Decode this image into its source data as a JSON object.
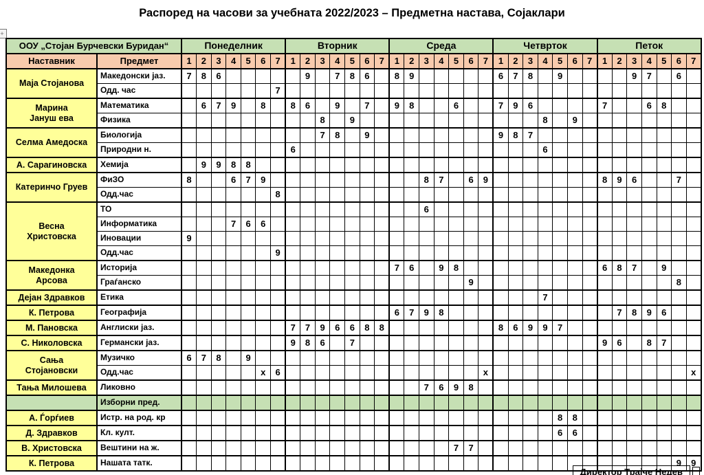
{
  "title": "Распоред на часови за учебната 2022/2023 – Предметна настава, Сојаклари",
  "colors": {
    "green": "#c6e0b4",
    "peach": "#f8cbad",
    "yellow": "#ffff99"
  },
  "table": {
    "school": "ООУ „Стојан Бурчевски Буридан“",
    "col_teacher": "Наставник",
    "col_subject": "Предмет",
    "days": [
      "Понеделник",
      "Вторник",
      "Среда",
      "Четврток",
      "Петок"
    ],
    "periods": [
      "1",
      "2",
      "3",
      "4",
      "5",
      "6",
      "7"
    ],
    "groups": [
      {
        "teacher": "Маја Стојанова",
        "rows": [
          {
            "subject": "Македонски јаз.",
            "mon": [
              "7",
              "8",
              "6",
              "",
              "",
              "",
              ""
            ],
            "tue": [
              "",
              "9",
              "",
              "7",
              "8",
              "6",
              ""
            ],
            "wed": [
              "8",
              "9",
              "",
              "",
              "",
              "",
              ""
            ],
            "thu": [
              "6",
              "7",
              "8",
              "",
              "9",
              "",
              ""
            ],
            "fri": [
              "",
              "",
              "9",
              "7",
              "",
              "6",
              ""
            ]
          },
          {
            "subject": "Одд. час",
            "mon": [
              "",
              "",
              "",
              "",
              "",
              "",
              "7"
            ]
          }
        ]
      },
      {
        "teacher": "Марина\nЈануш ева",
        "rows": [
          {
            "subject": "Математика",
            "mon": [
              "",
              "6",
              "7",
              "9",
              "",
              "8",
              ""
            ],
            "tue": [
              "8",
              "6",
              "",
              "9",
              "",
              "7",
              ""
            ],
            "wed": [
              "9",
              "8",
              "",
              "",
              "6",
              "",
              ""
            ],
            "thu": [
              "7",
              "9",
              "6",
              "",
              "",
              "",
              ""
            ],
            "fri": [
              "7",
              "",
              "",
              "6",
              "8",
              "",
              ""
            ]
          },
          {
            "subject": "Физика",
            "tue": [
              "",
              "",
              "8",
              "",
              "9",
              "",
              ""
            ],
            "thu": [
              "",
              "",
              "",
              "8",
              "",
              "9",
              ""
            ]
          }
        ]
      },
      {
        "teacher": "Селма Амедоска",
        "rows": [
          {
            "subject": "Биологија",
            "tue": [
              "",
              "",
              "7",
              "8",
              "",
              "9",
              ""
            ],
            "thu": [
              "9",
              "8",
              "7",
              "",
              "",
              "",
              ""
            ]
          },
          {
            "subject": "Природни н.",
            "tue": [
              "6",
              "",
              "",
              "",
              "",
              "",
              ""
            ],
            "thu": [
              "",
              "",
              "",
              "6",
              "",
              "",
              ""
            ]
          }
        ]
      },
      {
        "teacher": "А. Сарагиновска",
        "rows": [
          {
            "subject": "Хемија",
            "mon": [
              "",
              "9",
              "9",
              "8",
              "8",
              "",
              ""
            ]
          }
        ]
      },
      {
        "teacher": "Катеринчо Груев",
        "rows": [
          {
            "subject": "ФиЗО",
            "mon": [
              "8",
              "",
              "",
              "6",
              "7",
              "9",
              ""
            ],
            "wed": [
              "",
              "",
              "8",
              "7",
              "",
              "6",
              "9"
            ],
            "fri": [
              "8",
              "9",
              "6",
              "",
              "",
              "7",
              ""
            ]
          },
          {
            "subject": "Одд.час",
            "mon": [
              "",
              "",
              "",
              "",
              "",
              "",
              "8"
            ]
          }
        ]
      },
      {
        "teacher": "Весна\nХристовска",
        "rows": [
          {
            "subject": "ТО",
            "wed": [
              "",
              "",
              "6",
              "",
              "",
              "",
              ""
            ]
          },
          {
            "subject": "Информатика",
            "mon": [
              "",
              "",
              "",
              "7",
              "6",
              "6",
              ""
            ]
          },
          {
            "subject": "Иновации",
            "mon": [
              "9",
              "",
              "",
              "",
              "",
              "",
              ""
            ]
          },
          {
            "subject": "Одд.час",
            "mon": [
              "",
              "",
              "",
              "",
              "",
              "",
              "9"
            ]
          }
        ]
      },
      {
        "teacher": "Македонка\nАрсова",
        "rows": [
          {
            "subject": "Историја",
            "wed": [
              "7",
              "6",
              "",
              "9",
              "8",
              "",
              ""
            ],
            "fri": [
              "6",
              "8",
              "7",
              "",
              "9",
              "",
              ""
            ]
          },
          {
            "subject": "Граѓанско",
            "wed": [
              "",
              "",
              "",
              "",
              "",
              "9",
              ""
            ],
            "fri": [
              "",
              "",
              "",
              "",
              "",
              "8",
              ""
            ]
          }
        ]
      },
      {
        "teacher": "Дејан Здравков",
        "rows": [
          {
            "subject": "Етика",
            "thu": [
              "",
              "",
              "",
              "7",
              "",
              "",
              ""
            ]
          }
        ]
      },
      {
        "teacher": "К. Петрова",
        "rows": [
          {
            "subject": "Географија",
            "wed": [
              "6",
              "7",
              "9",
              "8",
              "",
              "",
              ""
            ],
            "fri": [
              "",
              "7",
              "8",
              "9",
              "6",
              "",
              ""
            ]
          }
        ]
      },
      {
        "teacher": "М. Пановска",
        "rows": [
          {
            "subject": "Англиски јаз.",
            "tue": [
              "7",
              "7",
              "9",
              "6",
              "6",
              "8",
              "8"
            ],
            "thu": [
              "8",
              "6",
              "9",
              "9",
              "7",
              "",
              ""
            ]
          }
        ]
      },
      {
        "teacher": "С. Николовска",
        "rows": [
          {
            "subject": "Германски јаз.",
            "tue": [
              "9",
              "8",
              "6",
              "",
              "7",
              "",
              ""
            ],
            "fri": [
              "9",
              "6",
              "",
              "8",
              "7",
              "",
              ""
            ]
          }
        ]
      },
      {
        "teacher": "Сања\nСтојановски",
        "rows": [
          {
            "subject": "Музичко",
            "mon": [
              "6",
              "7",
              "8",
              "",
              "9",
              "",
              ""
            ]
          },
          {
            "subject": "Одд.час",
            "mon": [
              "",
              "",
              "",
              "",
              "",
              "x",
              "6"
            ],
            "wed": [
              "",
              "",
              "",
              "",
              "",
              "",
              "x"
            ],
            "fri": [
              "",
              "",
              "",
              "",
              "",
              "",
              "x"
            ]
          }
        ]
      },
      {
        "teacher": "Тања Милошева",
        "rows": [
          {
            "subject": "Ликовно",
            "wed": [
              "",
              "",
              "7",
              "6",
              "9",
              "8",
              ""
            ]
          }
        ]
      },
      {
        "section": "Изборни пред."
      },
      {
        "teacher": "А. Ѓорѓиев",
        "rows": [
          {
            "subject": "Истр. на род. кр",
            "thu": [
              "",
              "",
              "",
              "",
              "8",
              "8",
              ""
            ]
          }
        ]
      },
      {
        "teacher": "Д. Здравков",
        "rows": [
          {
            "subject": "Кл. култ.",
            "thu": [
              "",
              "",
              "",
              "",
              "6",
              "6",
              ""
            ]
          }
        ]
      },
      {
        "teacher": "В. Христовска",
        "rows": [
          {
            "subject": "Вештини на ж.",
            "wed": [
              "",
              "",
              "",
              "",
              "7",
              "7",
              ""
            ]
          }
        ]
      },
      {
        "teacher": "К. Петрова",
        "rows": [
          {
            "subject": "Нашата татк.",
            "fri": [
              "",
              "",
              "",
              "",
              "",
              "9",
              "9"
            ]
          }
        ]
      }
    ]
  },
  "footer": {
    "director": "Директор Трајче Недев"
  }
}
